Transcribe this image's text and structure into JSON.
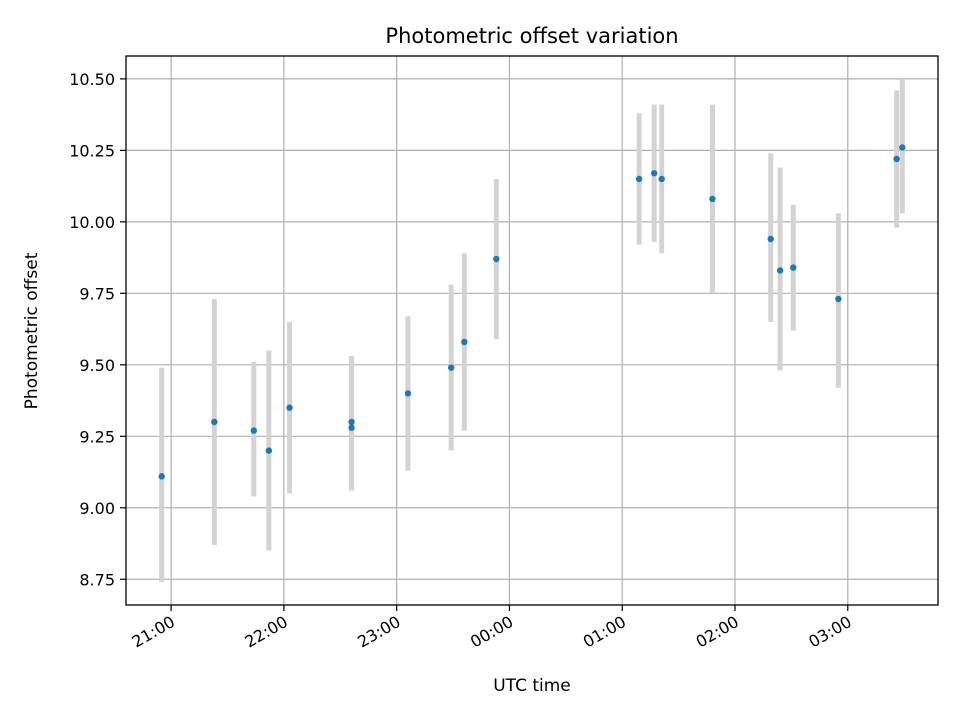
{
  "chart_data": {
    "type": "scatter",
    "title": "Photometric offset variation",
    "xlabel": "UTC time",
    "ylabel": "Photometric offset",
    "x_axis_type": "time",
    "xlim": [
      "20:36",
      "03:48"
    ],
    "ylim": [
      8.66,
      10.58
    ],
    "grid": true,
    "y_ticks": [
      8.75,
      9.0,
      9.25,
      9.5,
      9.75,
      10.0,
      10.25,
      10.5
    ],
    "y_tick_labels": [
      "8.75",
      "9.00",
      "9.25",
      "9.50",
      "9.75",
      "10.00",
      "10.25",
      "10.50"
    ],
    "x_ticks": [
      "21:00",
      "22:00",
      "23:00",
      "00:00",
      "01:00",
      "02:00",
      "03:00"
    ],
    "x_tick_labels": [
      "21:00",
      "22:00",
      "23:00",
      "00:00",
      "01:00",
      "02:00",
      "03:00"
    ],
    "colors": {
      "points": "#1f77b4",
      "errorbars": "#d3d3d3",
      "grid": "#b0b0b0"
    },
    "points": [
      {
        "time": "20:55",
        "y": 9.11,
        "err_low": 8.74,
        "err_high": 9.49
      },
      {
        "time": "21:23",
        "y": 9.3,
        "err_low": 8.87,
        "err_high": 9.73
      },
      {
        "time": "21:44",
        "y": 9.27,
        "err_low": 9.04,
        "err_high": 9.51
      },
      {
        "time": "21:52",
        "y": 9.2,
        "err_low": 8.85,
        "err_high": 9.55
      },
      {
        "time": "22:03",
        "y": 9.35,
        "err_low": 9.05,
        "err_high": 9.65
      },
      {
        "time": "22:36",
        "y": 9.3,
        "err_low": 9.06,
        "err_high": 9.53
      },
      {
        "time": "22:36",
        "y": 9.28,
        "err_low": 9.06,
        "err_high": 9.53
      },
      {
        "time": "23:06",
        "y": 9.4,
        "err_low": 9.13,
        "err_high": 9.67
      },
      {
        "time": "23:29",
        "y": 9.49,
        "err_low": 9.2,
        "err_high": 9.78
      },
      {
        "time": "23:36",
        "y": 9.58,
        "err_low": 9.27,
        "err_high": 9.89
      },
      {
        "time": "23:53",
        "y": 9.87,
        "err_low": 9.59,
        "err_high": 10.15
      },
      {
        "time": "01:09",
        "y": 10.15,
        "err_low": 9.92,
        "err_high": 10.38
      },
      {
        "time": "01:17",
        "y": 10.17,
        "err_low": 9.93,
        "err_high": 10.41
      },
      {
        "time": "01:21",
        "y": 10.15,
        "err_low": 9.89,
        "err_high": 10.41
      },
      {
        "time": "01:48",
        "y": 10.08,
        "err_low": 9.75,
        "err_high": 10.41
      },
      {
        "time": "02:19",
        "y": 9.94,
        "err_low": 9.65,
        "err_high": 10.24
      },
      {
        "time": "02:24",
        "y": 9.83,
        "err_low": 9.48,
        "err_high": 10.19
      },
      {
        "time": "02:31",
        "y": 9.84,
        "err_low": 9.62,
        "err_high": 10.06
      },
      {
        "time": "02:55",
        "y": 9.73,
        "err_low": 9.42,
        "err_high": 10.03
      },
      {
        "time": "03:26",
        "y": 10.22,
        "err_low": 9.98,
        "err_high": 10.46
      },
      {
        "time": "03:29",
        "y": 10.26,
        "err_low": 10.03,
        "err_high": 10.5
      }
    ]
  }
}
